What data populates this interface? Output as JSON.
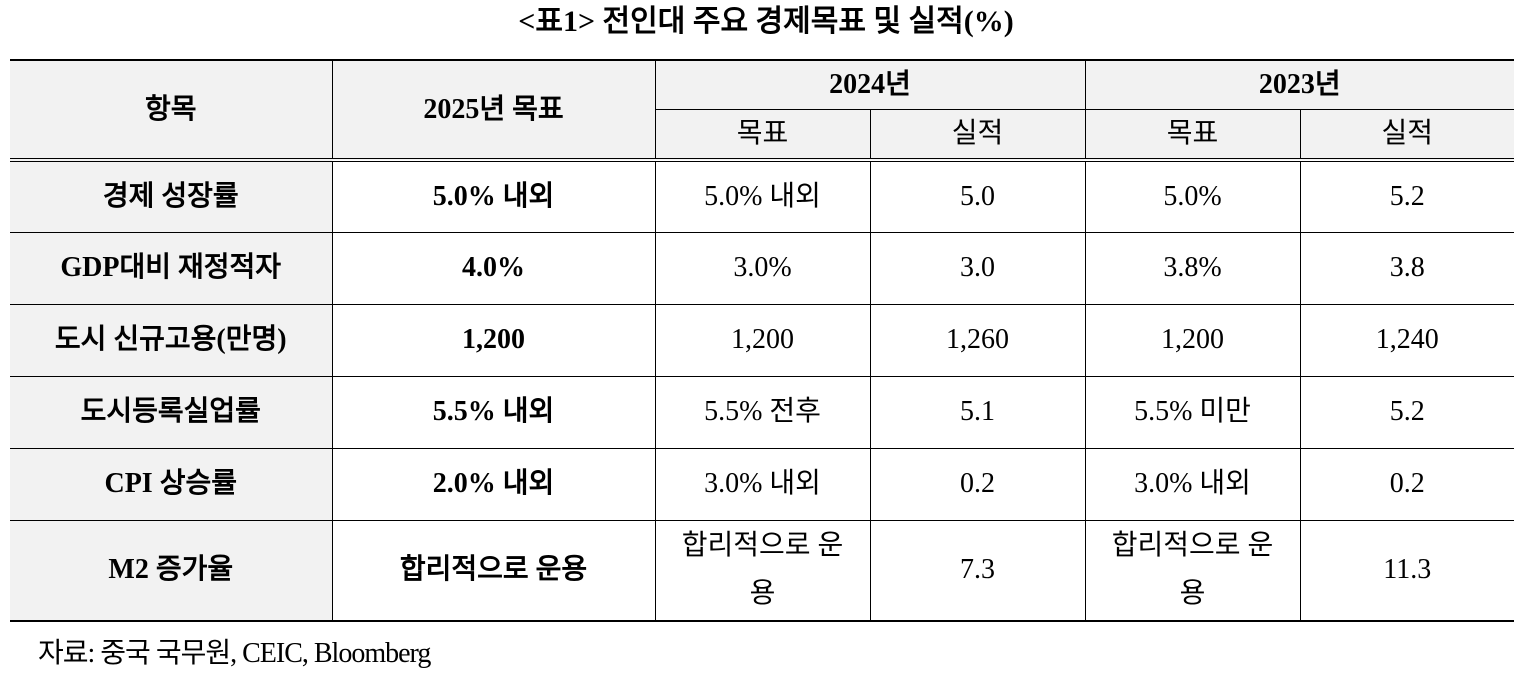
{
  "title": "<표1> 전인대 주요 경제목표 및 실적(%)",
  "table": {
    "header": {
      "item": "항목",
      "target_2025": "2025년 목표",
      "year_a": "2024년",
      "year_b": "2023년",
      "sub": [
        "목표",
        "실적",
        "목표",
        "실적"
      ]
    },
    "rows": [
      [
        "경제 성장률",
        "5.0% 내외",
        "5.0% 내외",
        "5.0",
        "5.0%",
        "5.2"
      ],
      [
        "GDP대비 재정적자",
        "4.0%",
        "3.0%",
        "3.0",
        "3.8%",
        "3.8"
      ],
      [
        "도시 신규고용(만명)",
        "1,200",
        "1,200",
        "1,260",
        "1,200",
        "1,240"
      ],
      [
        "도시등록실업률",
        "5.5% 내외",
        "5.5% 전후",
        "5.1",
        "5.5% 미만",
        "5.2"
      ],
      [
        "CPI 상승률",
        "2.0% 내외",
        "3.0% 내외",
        "0.2",
        "3.0% 내외",
        "0.2"
      ],
      [
        "M2 증가율",
        "합리적으로 운용",
        "합리적으로 운용",
        "7.3",
        "합리적으로 운용",
        "11.3"
      ]
    ]
  },
  "source": "자료: 중국 국무원, CEIC, Bloomberg"
}
